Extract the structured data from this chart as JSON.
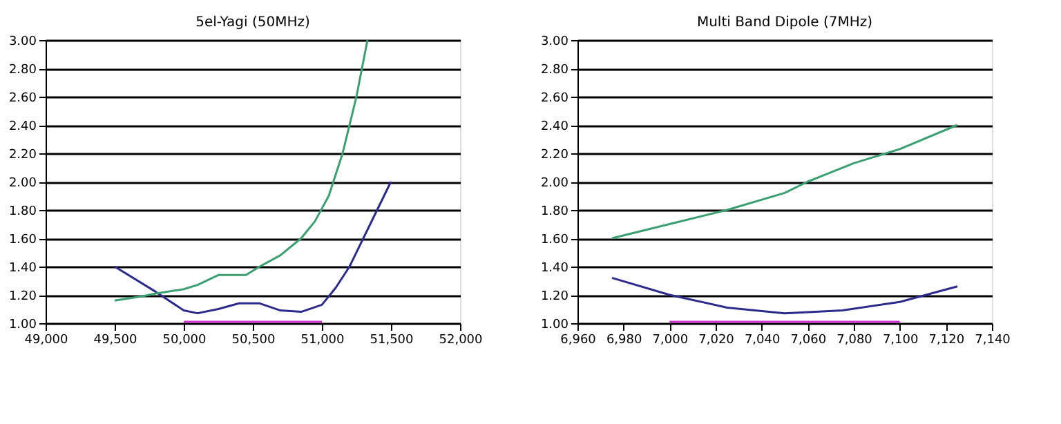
{
  "chart_data": [
    {
      "type": "line",
      "title": "5el-Yagi (50MHz)",
      "xlim": [
        49000,
        52000
      ],
      "xticks": [
        {
          "value": 49000,
          "label": "49,000"
        },
        {
          "value": 49500,
          "label": "49,500"
        },
        {
          "value": 50000,
          "label": "50,000"
        },
        {
          "value": 50500,
          "label": "50,500"
        },
        {
          "value": 51000,
          "label": "51,000"
        },
        {
          "value": 51500,
          "label": "51,500"
        },
        {
          "value": 52000,
          "label": "52,000"
        }
      ],
      "ylim": [
        1.0,
        3.0
      ],
      "yticks": [
        {
          "value": 1.0,
          "label": "1.00"
        },
        {
          "value": 1.2,
          "label": "1.20"
        },
        {
          "value": 1.4,
          "label": "1.40"
        },
        {
          "value": 1.6,
          "label": "1.60"
        },
        {
          "value": 1.8,
          "label": "1.80"
        },
        {
          "value": 2.0,
          "label": "2.00"
        },
        {
          "value": 2.2,
          "label": "2.20"
        },
        {
          "value": 2.4,
          "label": "2.40"
        },
        {
          "value": 2.6,
          "label": "2.60"
        },
        {
          "value": 2.8,
          "label": "2.80"
        },
        {
          "value": 3.0,
          "label": "3.00"
        }
      ],
      "grid": "y",
      "marker": "none",
      "line_style": "solid",
      "series": [
        {
          "color": "#2b2b8c",
          "x": [
            49500,
            49800,
            50000,
            50100,
            50250,
            50400,
            50550,
            50700,
            50850,
            51000,
            51100,
            51200,
            51350,
            51500
          ],
          "values": [
            1.4,
            1.22,
            1.09,
            1.07,
            1.1,
            1.14,
            1.14,
            1.09,
            1.08,
            1.13,
            1.25,
            1.4,
            1.7,
            2.0
          ]
        },
        {
          "color": "#3aa070",
          "x": [
            49500,
            49700,
            49800,
            50000,
            50100,
            50250,
            50450,
            50550,
            50700,
            50850,
            50950,
            51050,
            51150,
            51250,
            51330
          ],
          "values": [
            1.16,
            1.19,
            1.21,
            1.24,
            1.27,
            1.34,
            1.34,
            1.4,
            1.48,
            1.6,
            1.72,
            1.9,
            2.2,
            2.6,
            3.0
          ]
        },
        {
          "color": "#cc33cc",
          "x": [
            50000,
            51000
          ],
          "values": [
            1.01,
            1.01
          ]
        }
      ]
    },
    {
      "type": "line",
      "title": "Multi Band Dipole (7MHz)",
      "xlim": [
        6960,
        7140
      ],
      "xticks": [
        {
          "value": 6960,
          "label": "6,960"
        },
        {
          "value": 6980,
          "label": "6,980"
        },
        {
          "value": 7000,
          "label": "7,000"
        },
        {
          "value": 7020,
          "label": "7,020"
        },
        {
          "value": 7040,
          "label": "7,040"
        },
        {
          "value": 7060,
          "label": "7,060"
        },
        {
          "value": 7080,
          "label": "7,080"
        },
        {
          "value": 7100,
          "label": "7,100"
        },
        {
          "value": 7120,
          "label": "7,120"
        },
        {
          "value": 7140,
          "label": "7,140"
        }
      ],
      "ylim": [
        1.0,
        3.0
      ],
      "yticks": [
        {
          "value": 1.0,
          "label": "1.00"
        },
        {
          "value": 1.2,
          "label": "1.20"
        },
        {
          "value": 1.4,
          "label": "1.40"
        },
        {
          "value": 1.6,
          "label": "1.60"
        },
        {
          "value": 1.8,
          "label": "1.80"
        },
        {
          "value": 2.0,
          "label": "2.00"
        },
        {
          "value": 2.2,
          "label": "2.20"
        },
        {
          "value": 2.4,
          "label": "2.40"
        },
        {
          "value": 2.6,
          "label": "2.60"
        },
        {
          "value": 2.8,
          "label": "2.80"
        },
        {
          "value": 3.0,
          "label": "3.00"
        }
      ],
      "grid": "y",
      "marker": "none",
      "line_style": "solid",
      "series": [
        {
          "color": "#2b2b8c",
          "x": [
            6975,
            7000,
            7025,
            7050,
            7075,
            7100,
            7125
          ],
          "values": [
            1.32,
            1.2,
            1.11,
            1.07,
            1.09,
            1.15,
            1.26
          ]
        },
        {
          "color": "#3aa070",
          "x": [
            6975,
            7000,
            7025,
            7050,
            7060,
            7080,
            7100,
            7125
          ],
          "values": [
            1.6,
            1.7,
            1.8,
            1.92,
            2.0,
            2.13,
            2.23,
            2.4
          ]
        },
        {
          "color": "#cc33cc",
          "x": [
            7000,
            7100
          ],
          "values": [
            1.01,
            1.01
          ]
        }
      ]
    }
  ]
}
